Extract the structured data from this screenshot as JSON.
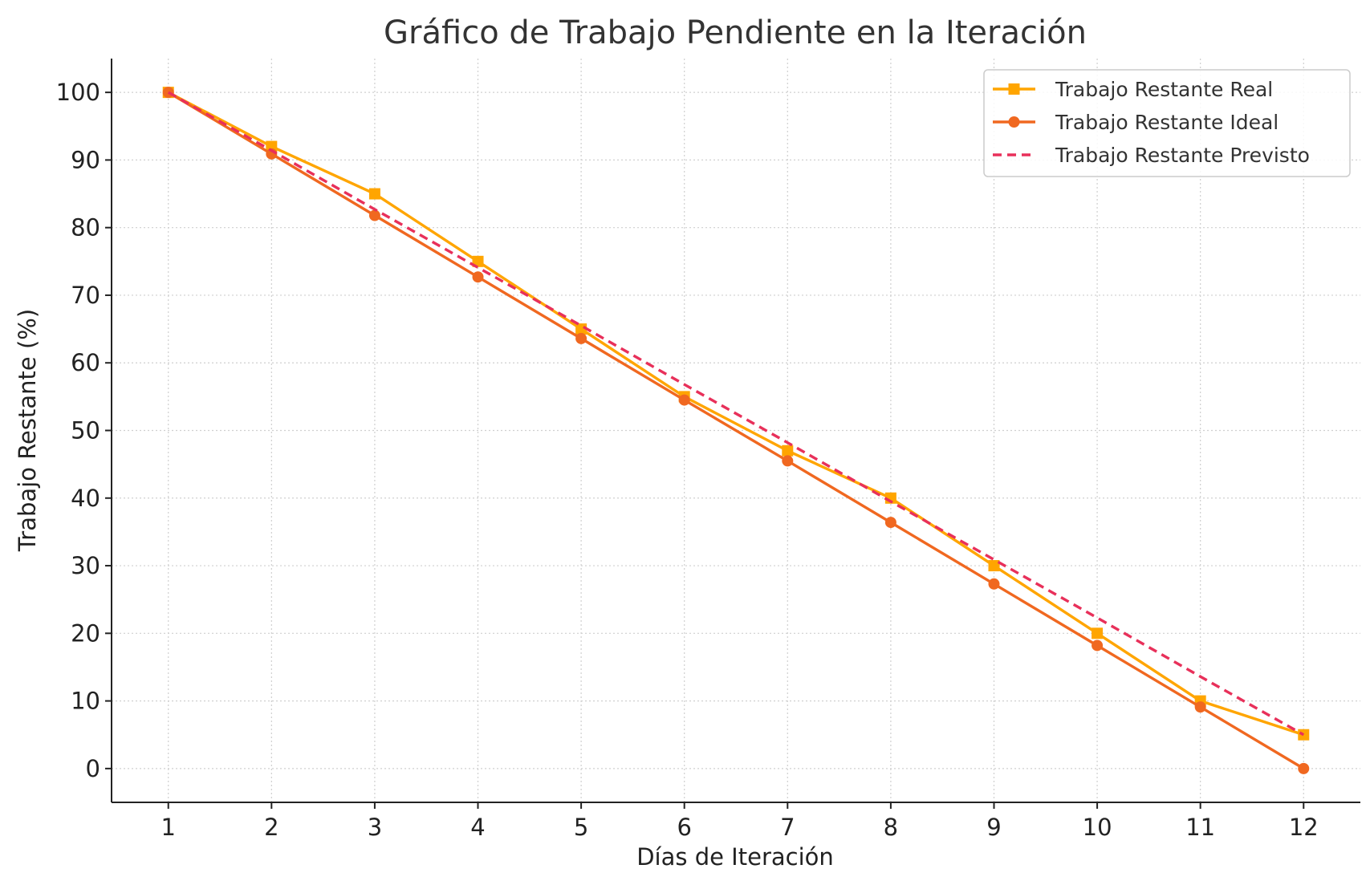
{
  "chart_data": {
    "type": "line",
    "title": "Gráfico de Trabajo Pendiente en la Iteración",
    "xlabel": "Días de Iteración",
    "ylabel": "Trabajo Restante (%)",
    "x": [
      1,
      2,
      3,
      4,
      5,
      6,
      7,
      8,
      9,
      10,
      11,
      12
    ],
    "xlim": [
      0.45,
      12.55
    ],
    "ylim": [
      -5,
      105
    ],
    "yticks": [
      0,
      10,
      20,
      30,
      40,
      50,
      60,
      70,
      80,
      90,
      100
    ],
    "grid": true,
    "legend_position": "top-right",
    "series": [
      {
        "name": "Trabajo Restante Real",
        "color": "#FFA500",
        "marker": "square",
        "line_style": "solid",
        "values": [
          100,
          92,
          85,
          75,
          65,
          55,
          47,
          40,
          30,
          20,
          10,
          5
        ]
      },
      {
        "name": "Trabajo Restante Ideal",
        "color": "#F06820",
        "marker": "circle",
        "line_style": "solid",
        "values": [
          100,
          90.9,
          81.8,
          72.7,
          63.6,
          54.5,
          45.5,
          36.4,
          27.3,
          18.2,
          9.1,
          0
        ]
      },
      {
        "name": "Trabajo Restante Previsto",
        "color": "#E8305A",
        "marker": "none",
        "line_style": "dashed",
        "values": [
          100,
          91.4,
          82.7,
          74.1,
          65.5,
          56.8,
          48.2,
          39.5,
          30.9,
          22.3,
          13.6,
          5
        ]
      }
    ]
  }
}
